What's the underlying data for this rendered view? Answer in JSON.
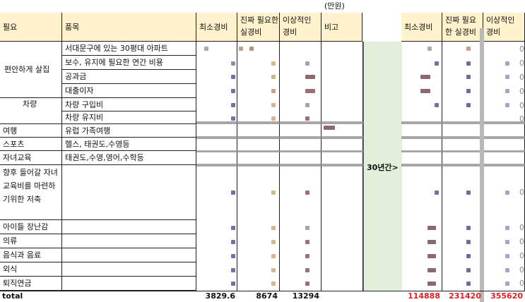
{
  "unit_label": "(만원)",
  "headers": {
    "left": [
      "필요",
      "품목"
    ],
    "cost": [
      "최소경비",
      "진짜 필요한 실경비",
      "이상적인 경비",
      "비고"
    ],
    "right": [
      "최소경비",
      "진짜 필요한 실경비",
      "이상적인 경비"
    ]
  },
  "categories": [
    {
      "label": "편안하게 살집",
      "items": [
        "서대문구에 있는 30평대 아파트",
        "보수, 유지에 필요한 연간 비용",
        "공과금",
        "대출이자"
      ]
    },
    {
      "label": "차량",
      "items": [
        "차량 구입비",
        "차량 유지비"
      ]
    },
    {
      "label": "여행",
      "items": [
        "유럽 가족여행"
      ]
    },
    {
      "label": "스포츠",
      "items": [
        "헬스, 태권도,수영등"
      ]
    },
    {
      "label": "자녀교육",
      "items": [
        "태권도,수영,영어,수학등"
      ]
    },
    {
      "label": "향후 들어갈 자녀교육비를 마련하기위한 저축",
      "items": [
        ""
      ]
    },
    {
      "label": "아이들 장난감",
      "items": [
        ""
      ]
    },
    {
      "label": "의류",
      "items": [
        ""
      ]
    },
    {
      "label": "음식과 음료",
      "items": [
        ""
      ]
    },
    {
      "label": "외식",
      "items": [
        ""
      ]
    },
    {
      "label": "퇴직연금",
      "items": [
        ""
      ]
    }
  ],
  "middle_label": "30년간>",
  "totals": {
    "label": "total",
    "min": "3829.6",
    "real": "8674",
    "ideal": "13294",
    "min_30y": "114888",
    "real_30y": "231420",
    "ideal_30y": "355620"
  },
  "zero": "0",
  "colors": {
    "header_bg": "#fff2cc",
    "green_bg": "#e2efda",
    "total_red": "#e31e24"
  }
}
